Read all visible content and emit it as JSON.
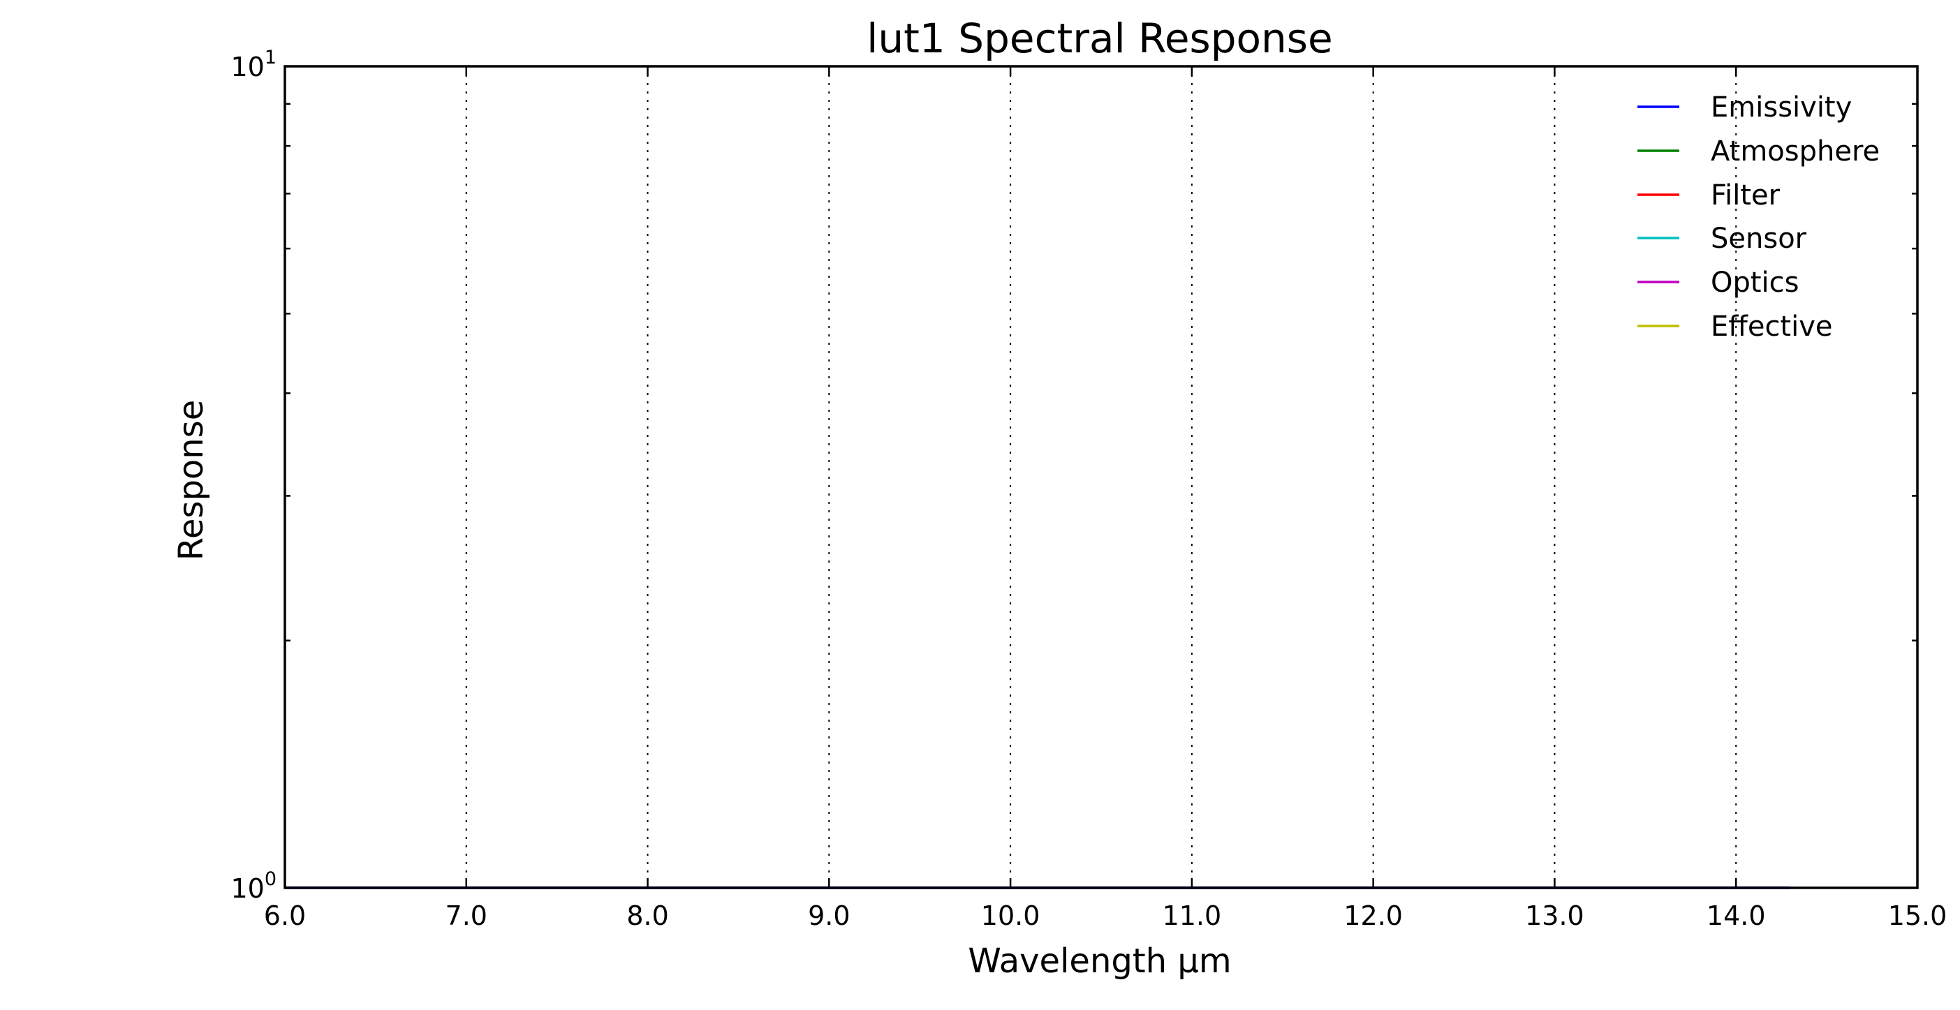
{
  "chart_data": {
    "type": "line",
    "title": "lut1 Spectral Response",
    "xlabel": "Wavelength μm",
    "ylabel": "Response",
    "xlim": [
      6.0,
      15.0
    ],
    "ylim": [
      1,
      10
    ],
    "yscale": "log",
    "grid": "vertical dotted",
    "x_ticks": [
      "6.0",
      "7.0",
      "8.0",
      "9.0",
      "10.0",
      "11.0",
      "12.0",
      "13.0",
      "14.0",
      "15.0"
    ],
    "y_ticks": [
      {
        "value": 1,
        "base": "10",
        "exp": "0"
      },
      {
        "value": 10,
        "base": "10",
        "exp": "1"
      }
    ],
    "legend_position": "top-right",
    "series": [
      {
        "name": "Emissivity",
        "color": "#0000ff",
        "x": [
          6.0,
          14.3
        ],
        "y": [
          1,
          1
        ]
      },
      {
        "name": "Atmosphere",
        "color": "#008000",
        "x": [],
        "y": []
      },
      {
        "name": "Filter",
        "color": "#ff0000",
        "x": [],
        "y": []
      },
      {
        "name": "Sensor",
        "color": "#00bfbf",
        "x": [],
        "y": []
      },
      {
        "name": "Optics",
        "color": "#bf00bf",
        "x": [],
        "y": []
      },
      {
        "name": "Effective",
        "color": "#bfbf00",
        "x": [],
        "y": []
      }
    ]
  }
}
